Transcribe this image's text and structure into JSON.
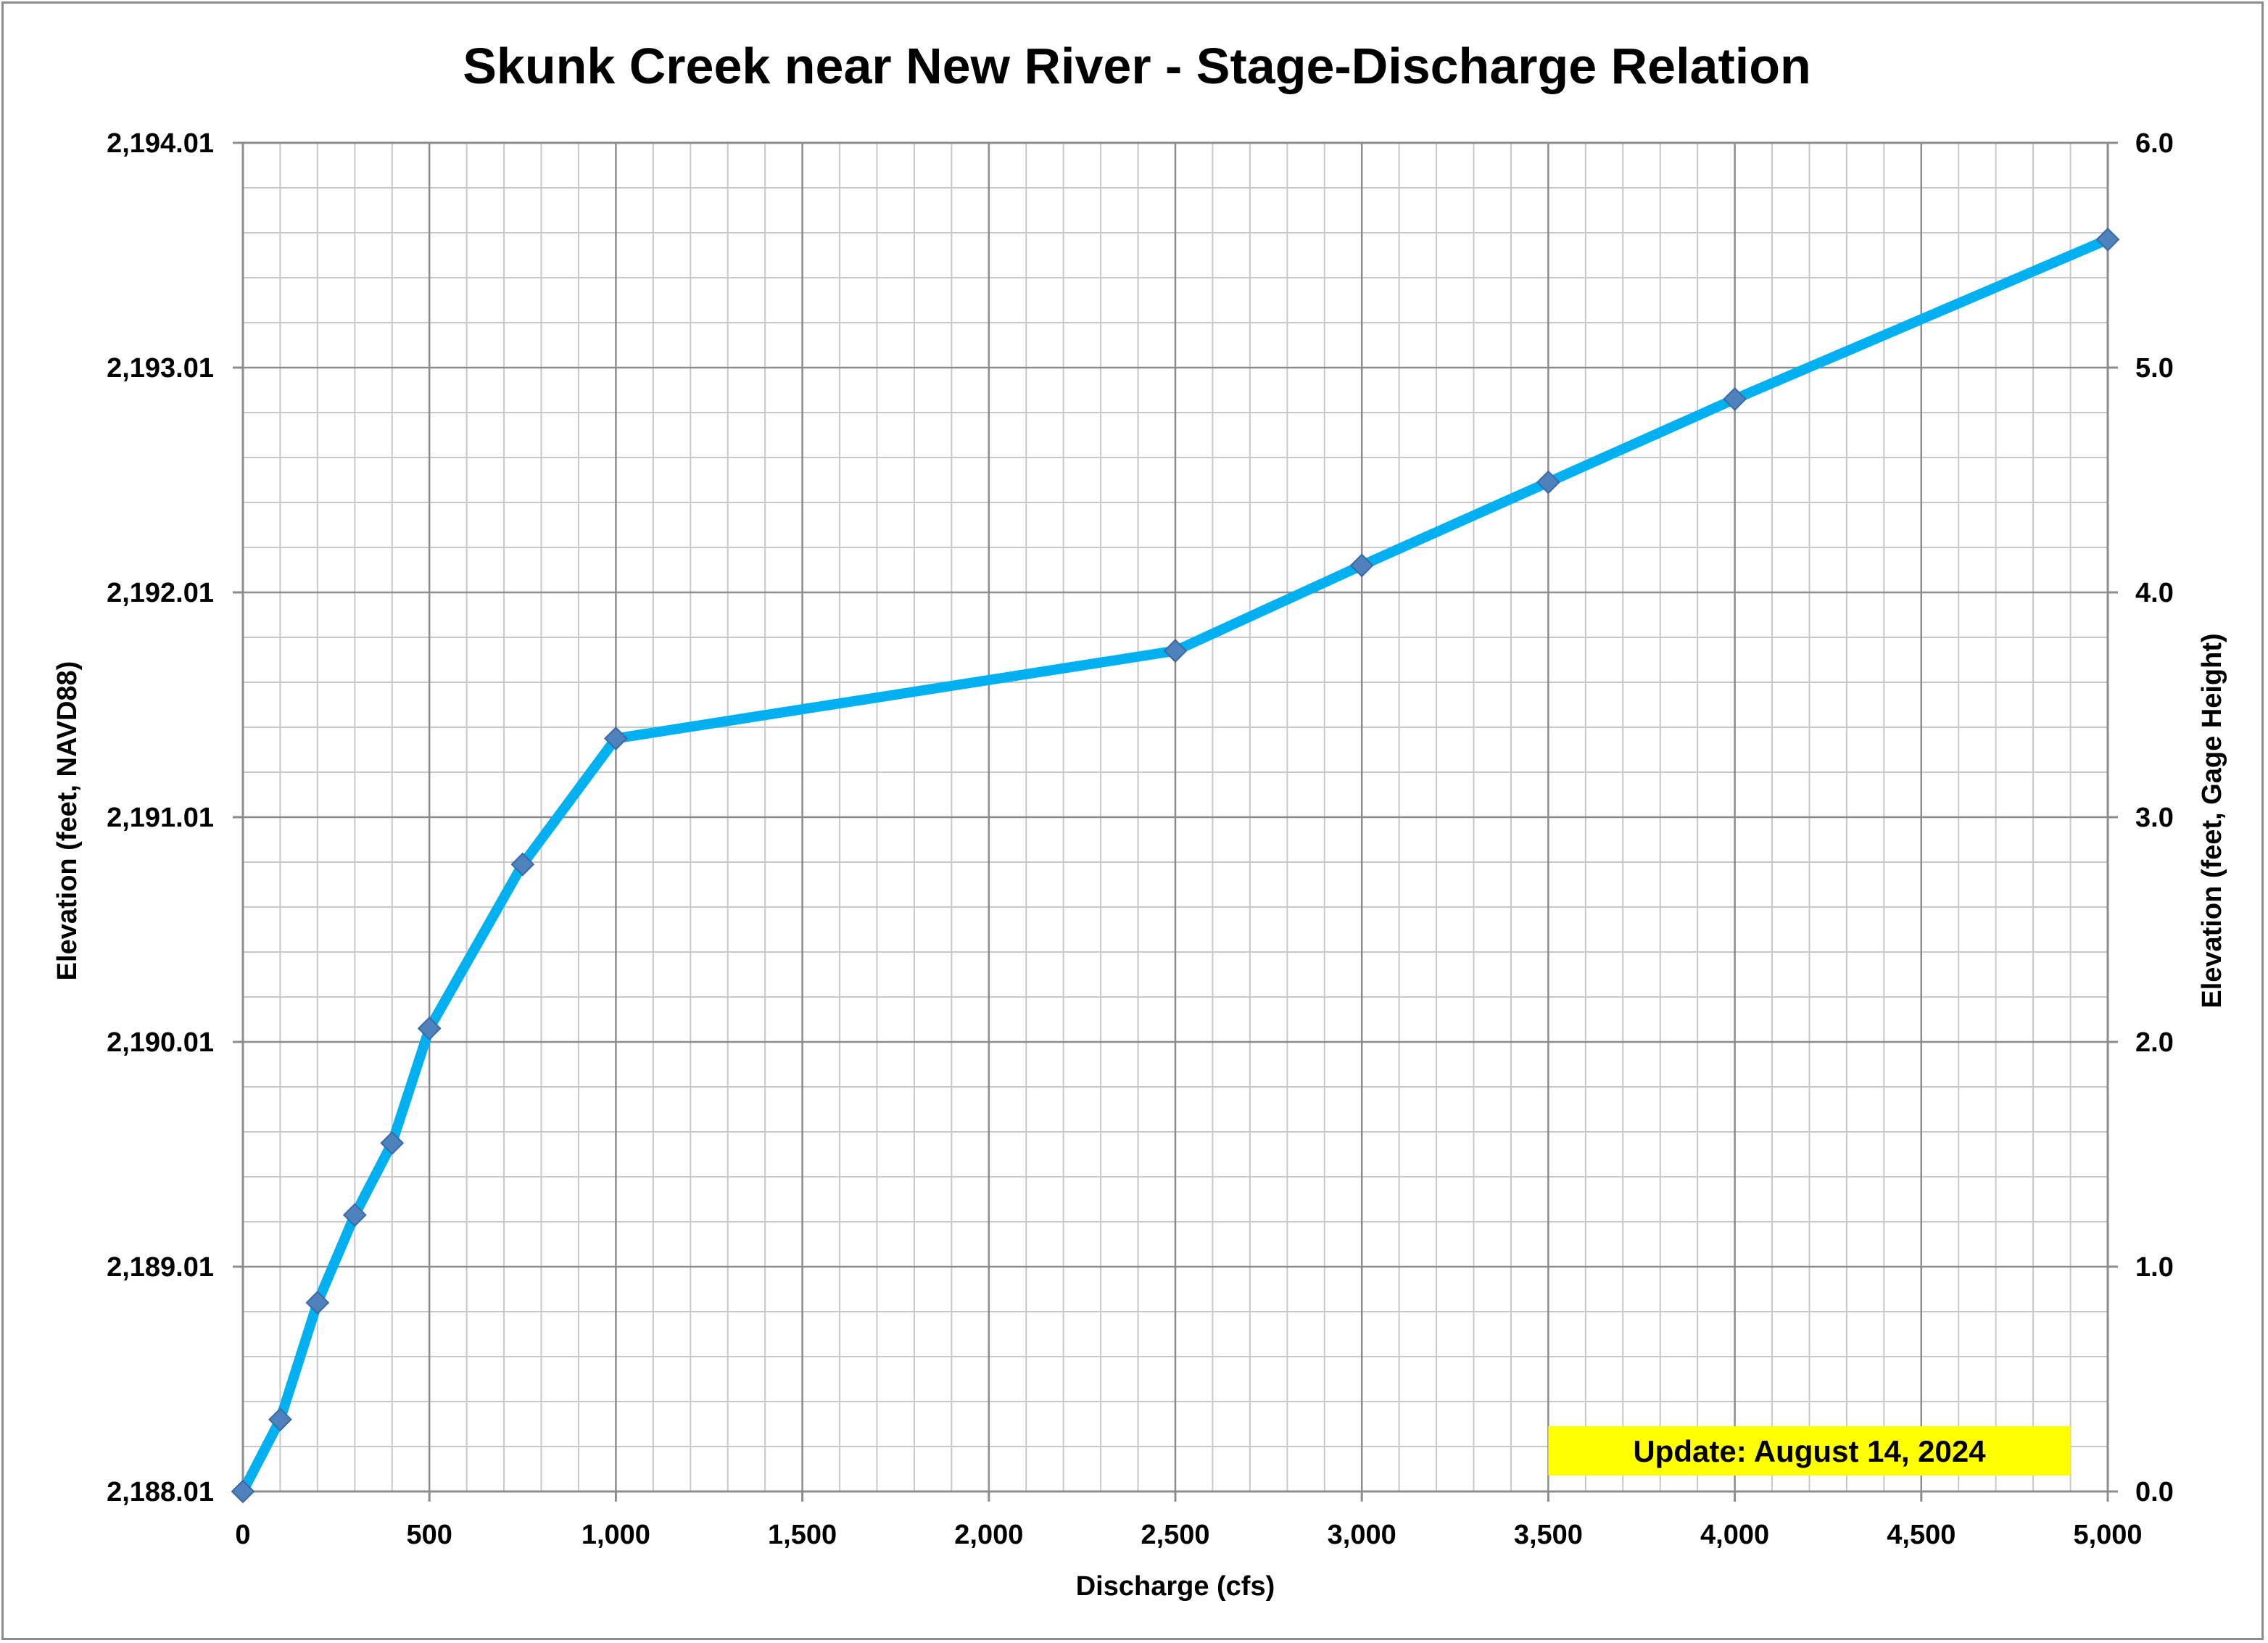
{
  "chart_data": {
    "type": "line",
    "title": "Skunk Creek near New River - Stage-Discharge Relation",
    "xlabel": "Discharge (cfs)",
    "ylabel": "Elevation (feet, NAVD88)",
    "y2label": "Elevation (feet, Gage Height)",
    "xlim": [
      0,
      5000
    ],
    "ylim": [
      2188.01,
      2194.01
    ],
    "y2lim": [
      0.0,
      6.0
    ],
    "x_ticks": [
      "0",
      "500",
      "1,000",
      "1,500",
      "2,000",
      "2,500",
      "3,000",
      "3,500",
      "4,000",
      "4,500",
      "5,000"
    ],
    "y_ticks": [
      "2,188.01",
      "2,189.01",
      "2,190.01",
      "2,191.01",
      "2,192.01",
      "2,193.01",
      "2,194.01"
    ],
    "y2_ticks": [
      "0.0",
      "1.0",
      "2.0",
      "3.0",
      "4.0",
      "5.0",
      "6.0"
    ],
    "grid": true,
    "series": [
      {
        "x": [
          0,
          100,
          200,
          300,
          400,
          500,
          750,
          1000,
          2500,
          3000,
          3500,
          4000,
          5000
        ],
        "y": [
          2188.01,
          2188.33,
          2188.85,
          2189.24,
          2189.56,
          2190.07,
          2190.8,
          2191.36,
          2191.75,
          2192.13,
          2192.5,
          2192.87,
          2193.58
        ],
        "line_color": "#00b0f0",
        "marker_color": "#4f81bd",
        "marker": "diamond"
      }
    ],
    "annotation": {
      "text": "Update: August 14, 2024",
      "background": "#ffff00"
    }
  }
}
